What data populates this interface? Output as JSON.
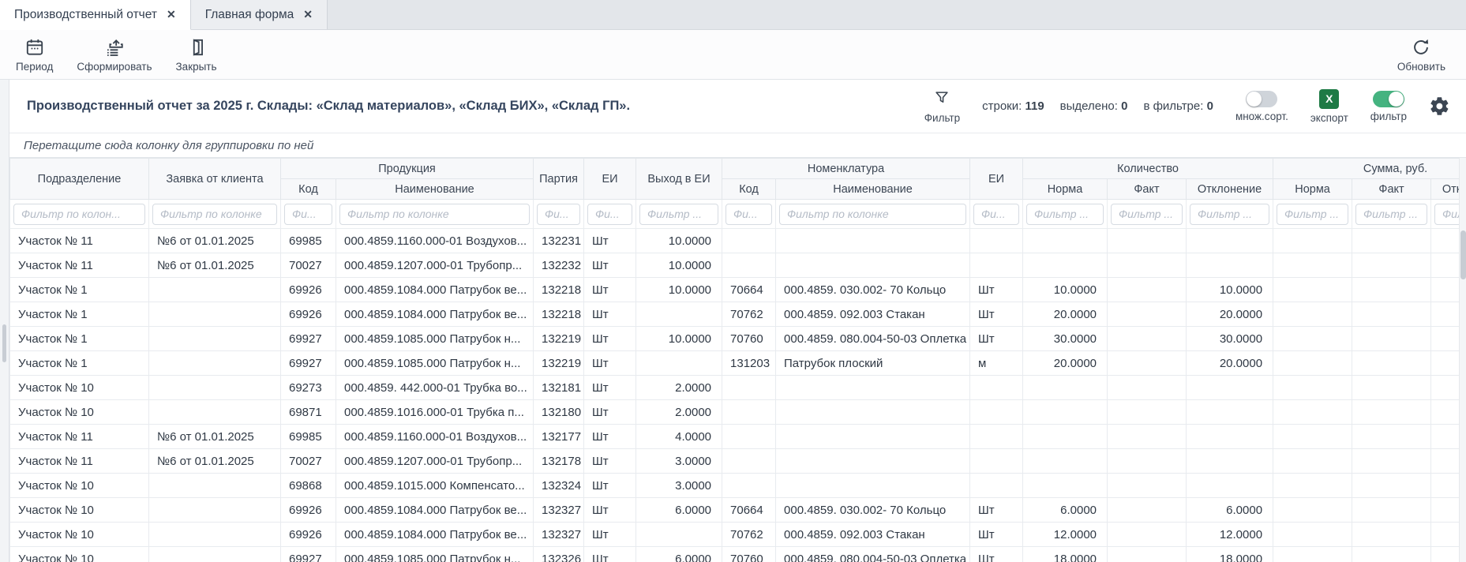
{
  "tabs": [
    {
      "label": "Производственный отчет",
      "close_glyph": "✕"
    },
    {
      "label": "Главная форма",
      "close_glyph": "✕"
    }
  ],
  "toolbar": {
    "period": "Период",
    "generate": "Сформировать",
    "close": "Закрыть",
    "refresh": "Обновить"
  },
  "report": {
    "title": "Производственный отчет за 2025 г. Склады: «Склад материалов», «Склад БИХ», «Склад ГП».",
    "filter_icon_label": "Фильтр",
    "rows_label": "строки:",
    "rows_value": "119",
    "selected_label": "выделено:",
    "selected_value": "0",
    "in_filter_label": "в фильтре:",
    "in_filter_value": "0",
    "multisort_label": "множ.сорт.",
    "export_label": "экспорт",
    "export_glyph": "X",
    "filter_toggle_label": "фильтр",
    "colors": {
      "excel_green": "#1e7a45",
      "toggle_on_green": "#45b380",
      "title_text": "#35455e"
    }
  },
  "grid": {
    "group_hint": "Перетащите сюда колонку для группировки по ней",
    "groups": [
      "Продукция",
      "Номенклатура",
      "Количество",
      "Сумма, руб."
    ],
    "columns": [
      "Подразделение",
      "Заявка от клиента",
      "Код",
      "Наименование",
      "Партия",
      "ЕИ",
      "Выход в ЕИ",
      "Код",
      "Наименование",
      "ЕИ",
      "Норма",
      "Факт",
      "Отклонение",
      "Норма",
      "Факт",
      "Отклонение"
    ],
    "filter_placeholders": [
      "Фильтр по колон...",
      "Фильтр по колонке",
      "Фи...",
      "Фильтр по колонке",
      "Фи...",
      "Фи...",
      "Фильтр ...",
      "Фи...",
      "Фильтр по колонке",
      "Фи...",
      "Фильтр ...",
      "Фильтр ...",
      "Фильтр ...",
      "Фильтр ...",
      "Фильтр ...",
      "Фильтр ..."
    ],
    "rows": [
      [
        "Участок № 11",
        "№6 от 01.01.2025",
        "69985",
        "000.4859.1160.000-01 Воздухов...",
        "132231",
        "Шт",
        "10.0000",
        "",
        "",
        "",
        "",
        "",
        "",
        "",
        "",
        ""
      ],
      [
        "Участок № 11",
        "№6 от 01.01.2025",
        "70027",
        "000.4859.1207.000-01 Трубопр...",
        "132232",
        "Шт",
        "10.0000",
        "",
        "",
        "",
        "",
        "",
        "",
        "",
        "",
        ""
      ],
      [
        "Участок № 1",
        "",
        "69926",
        "000.4859.1084.000 Патрубок ве...",
        "132218",
        "Шт",
        "10.0000",
        "70664",
        "000.4859. 030.002- 70 Кольцо",
        "Шт",
        "10.0000",
        "",
        "10.0000",
        "",
        "",
        ""
      ],
      [
        "Участок № 1",
        "",
        "69926",
        "000.4859.1084.000 Патрубок ве...",
        "132218",
        "Шт",
        "",
        "70762",
        "000.4859. 092.003 Стакан",
        "Шт",
        "20.0000",
        "",
        "20.0000",
        "",
        "",
        ""
      ],
      [
        "Участок № 1",
        "",
        "69927",
        "000.4859.1085.000 Патрубок н...",
        "132219",
        "Шт",
        "10.0000",
        "70760",
        "000.4859. 080.004-50-03 Оплетка",
        "Шт",
        "30.0000",
        "",
        "30.0000",
        "",
        "",
        ""
      ],
      [
        "Участок № 1",
        "",
        "69927",
        "000.4859.1085.000 Патрубок н...",
        "132219",
        "Шт",
        "",
        "131203",
        "Патрубок плоский",
        "м",
        "20.0000",
        "",
        "20.0000",
        "",
        "",
        ""
      ],
      [
        "Участок № 10",
        "",
        "69273",
        "000.4859. 442.000-01 Трубка во...",
        "132181",
        "Шт",
        "2.0000",
        "",
        "",
        "",
        "",
        "",
        "",
        "",
        "",
        ""
      ],
      [
        "Участок № 10",
        "",
        "69871",
        "000.4859.1016.000-01 Трубка п...",
        "132180",
        "Шт",
        "2.0000",
        "",
        "",
        "",
        "",
        "",
        "",
        "",
        "",
        ""
      ],
      [
        "Участок № 11",
        "№6 от 01.01.2025",
        "69985",
        "000.4859.1160.000-01 Воздухов...",
        "132177",
        "Шт",
        "4.0000",
        "",
        "",
        "",
        "",
        "",
        "",
        "",
        "",
        ""
      ],
      [
        "Участок № 11",
        "№6 от 01.01.2025",
        "70027",
        "000.4859.1207.000-01 Трубопр...",
        "132178",
        "Шт",
        "3.0000",
        "",
        "",
        "",
        "",
        "",
        "",
        "",
        "",
        ""
      ],
      [
        "Участок № 10",
        "",
        "69868",
        "000.4859.1015.000 Компенсато...",
        "132324",
        "Шт",
        "3.0000",
        "",
        "",
        "",
        "",
        "",
        "",
        "",
        "",
        ""
      ],
      [
        "Участок № 10",
        "",
        "69926",
        "000.4859.1084.000 Патрубок ве...",
        "132327",
        "Шт",
        "6.0000",
        "70664",
        "000.4859. 030.002- 70 Кольцо",
        "Шт",
        "6.0000",
        "",
        "6.0000",
        "",
        "",
        ""
      ],
      [
        "Участок № 10",
        "",
        "69926",
        "000.4859.1084.000 Патрубок ве...",
        "132327",
        "Шт",
        "",
        "70762",
        "000.4859. 092.003 Стакан",
        "Шт",
        "12.0000",
        "",
        "12.0000",
        "",
        "",
        ""
      ],
      [
        "Участок № 10",
        "",
        "69927",
        "000.4859.1085.000 Патрубок н...",
        "132326",
        "Шт",
        "6.0000",
        "70760",
        "000.4859. 080.004-50-03 Оплетка",
        "Шт",
        "18.0000",
        "",
        "18.0000",
        "",
        "",
        ""
      ]
    ]
  }
}
